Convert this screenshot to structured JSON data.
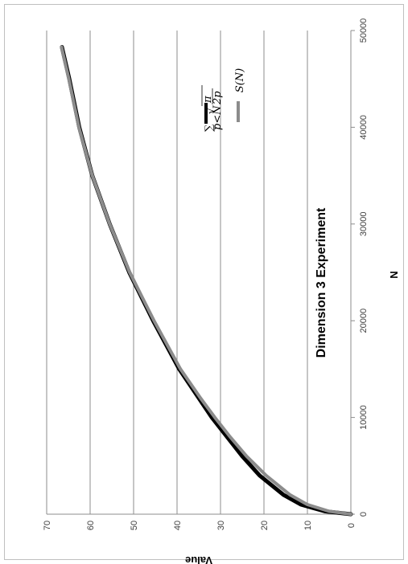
{
  "chart_data": {
    "type": "line",
    "title": "Dimension 3 Experiment",
    "xlabel": "N",
    "ylabel": "Value",
    "xlim": [
      0,
      50000
    ],
    "ylim": [
      0,
      70
    ],
    "x_ticks": [
      "0",
      "10000",
      "20000",
      "30000",
      "40000",
      "50000"
    ],
    "y_ticks": [
      "0",
      "10",
      "20",
      "30",
      "40",
      "50",
      "60",
      "70"
    ],
    "grid": "horizontal",
    "legend_position": "top-right",
    "series": [
      {
        "name": "∑_{p<N} √(π/2p)",
        "color": "#000000",
        "x": [
          0,
          300,
          1000,
          2000,
          4000,
          6000,
          8000,
          10000,
          12000,
          15000,
          20000,
          25000,
          30000,
          35000,
          40000,
          45000,
          48300
        ],
        "y": [
          0,
          6,
          11.5,
          15.5,
          21,
          25,
          28.5,
          32,
          35,
          39.5,
          45.5,
          51,
          55.5,
          59.5,
          62.5,
          64.8,
          66.5
        ]
      },
      {
        "name": "S(N)",
        "color": "#8c8c8c",
        "x": [
          0,
          300,
          1000,
          2000,
          4000,
          6000,
          8000,
          10000,
          12000,
          15000,
          20000,
          25000,
          30000,
          35000,
          40000,
          45000,
          48300
        ],
        "y": [
          0,
          5,
          10,
          14,
          19.5,
          24,
          27.8,
          31.3,
          34.6,
          39.2,
          45.3,
          50.9,
          55.5,
          59.5,
          62.6,
          64.9,
          66.6
        ]
      }
    ]
  }
}
